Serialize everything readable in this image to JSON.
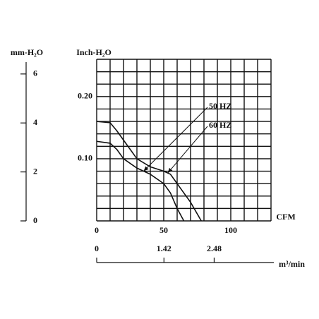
{
  "chart_data": {
    "type": "line",
    "x_label": "CFM",
    "y_label": "Inch-H₂O",
    "y2_label": "mm-H₂O",
    "x2_label": "m³/min",
    "xlim": [
      0,
      130
    ],
    "ylim": [
      0,
      0.26
    ],
    "xticks": [
      0,
      50,
      100
    ],
    "yticks": [
      {
        "value": 0.1,
        "label": "0.10"
      },
      {
        "value": 0.2,
        "label": "0.20"
      }
    ],
    "grid_x": [
      0,
      10,
      20,
      30,
      40,
      50,
      60,
      70,
      80,
      90,
      100,
      110,
      120,
      130
    ],
    "grid_y": [
      0,
      0.02,
      0.04,
      0.06,
      0.08,
      0.1,
      0.12,
      0.14,
      0.16,
      0.18,
      0.2,
      0.22,
      0.24,
      0.26
    ],
    "y2lim": [
      0,
      6.6
    ],
    "y2ticks": [
      0,
      2,
      4,
      6
    ],
    "x2lim": [
      0,
      3.68
    ],
    "x2ticks": [
      0,
      1.42,
      2.48
    ],
    "color": "#111111",
    "series": [
      {
        "name": "50 HZ",
        "color": "#111111",
        "x": [
          0,
          10,
          15,
          20,
          30,
          40,
          50,
          55,
          60,
          65
        ],
        "values": [
          0.128,
          0.125,
          0.115,
          0.1,
          0.085,
          0.075,
          0.06,
          0.045,
          0.02,
          0
        ],
        "arrow_to": [
          35,
          0.08
        ]
      },
      {
        "name": "60 HZ",
        "color": "#111111",
        "x": [
          0,
          10,
          15,
          20,
          30,
          40,
          50,
          55,
          60,
          70,
          78
        ],
        "values": [
          0.16,
          0.158,
          0.145,
          0.13,
          0.1,
          0.087,
          0.08,
          0.075,
          0.06,
          0.03,
          0
        ],
        "arrow_to": [
          53,
          0.077
        ]
      }
    ]
  }
}
